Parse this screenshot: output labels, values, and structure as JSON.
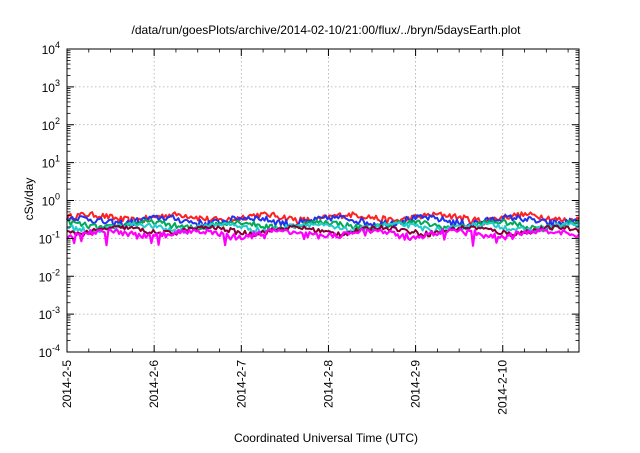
{
  "chart_data": {
    "type": "line",
    "title": "/data/run/goesPlots/archive/2014-02-10/21:00/flux/../bryn/5daysEarth.plot",
    "xlabel": "Coordinated Universal Time (UTC)",
    "ylabel": "cSv/day",
    "yscale": "log",
    "ylim": [
      0.0001,
      10000
    ],
    "xlim": [
      "2014-02-05T00:00",
      "2014-02-10T21:00"
    ],
    "x_tick_labels": [
      "2014-2-5",
      "2014-2-6",
      "2014-2-7",
      "2014-2-8",
      "2014-2-9",
      "2014-2-10"
    ],
    "y_tick_labels": [
      {
        "base": "10",
        "exp": "-4"
      },
      {
        "base": "10",
        "exp": "-3"
      },
      {
        "base": "10",
        "exp": "-2"
      },
      {
        "base": "10",
        "exp": "-1"
      },
      {
        "base": "10",
        "exp": "0"
      },
      {
        "base": "10",
        "exp": "1"
      },
      {
        "base": "10",
        "exp": "2"
      },
      {
        "base": "10",
        "exp": "3"
      },
      {
        "base": "10",
        "exp": "4"
      }
    ],
    "grid": true,
    "legend": "none",
    "series_style": "noisy daily-cycle traces (approximate envelopes read from plot)",
    "series": [
      {
        "color": "#ff2020",
        "baseline": 0.36,
        "amplitude": 0.09,
        "spike_depth": 0.0
      },
      {
        "color": "#2233ee",
        "baseline": 0.3,
        "amplitude": 0.08,
        "spike_depth": 0.0
      },
      {
        "color": "#00aa55",
        "baseline": 0.23,
        "amplitude": 0.05,
        "spike_depth": 0.0
      },
      {
        "color": "#22cccc",
        "baseline": 0.2,
        "amplitude": 0.04,
        "spike_depth": 0.0
      },
      {
        "color": "#880033",
        "baseline": 0.165,
        "amplitude": 0.03,
        "spike_depth": 0.0
      },
      {
        "color": "#ff00ff",
        "baseline": 0.135,
        "amplitude": 0.03,
        "spike_depth": 0.55
      }
    ]
  }
}
